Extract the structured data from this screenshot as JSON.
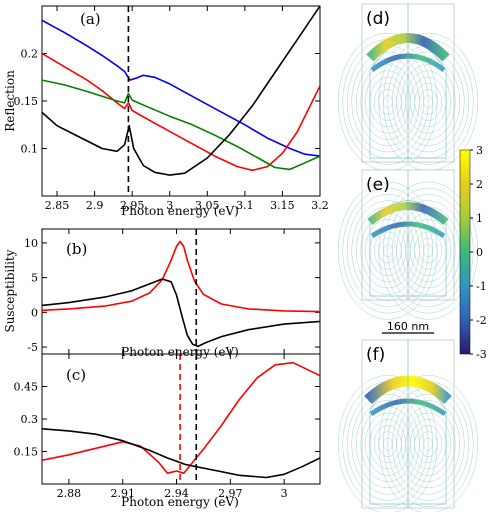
{
  "figure": {
    "colorbar": {
      "ticks": [
        "3",
        "2",
        "1",
        "0",
        "-1",
        "-2",
        "-3"
      ],
      "range": [
        -3,
        3
      ]
    },
    "scale_bar_label": "160 nm",
    "map_panels": [
      {
        "label": "(d)"
      },
      {
        "label": "(e)"
      },
      {
        "label": "(f)"
      }
    ]
  },
  "chart_data": [
    {
      "type": "line",
      "panel_label": "(a)",
      "xlabel": "Photon energy (eV)",
      "ylabel": "Reflection",
      "xlim": [
        2.83,
        3.2
      ],
      "ylim": [
        0.05,
        0.25
      ],
      "xticks": [
        "2.85",
        "2.9",
        "2.95",
        "3",
        "3.05",
        "3.1",
        "3.15",
        "3.2"
      ],
      "yticks": [
        "0.1",
        "0.15",
        "0.2"
      ],
      "vline": {
        "x": 2.945,
        "style": "dashed",
        "color": "#000000"
      },
      "series": [
        {
          "color": "#0000ff",
          "x": [
            2.83,
            2.86,
            2.89,
            2.91,
            2.93,
            2.94,
            2.947,
            2.955,
            2.965,
            2.98,
            3.0,
            3.03,
            3.06,
            3.1,
            3.13,
            3.16,
            3.18,
            3.2
          ],
          "y": [
            0.235,
            0.222,
            0.208,
            0.198,
            0.187,
            0.181,
            0.172,
            0.174,
            0.177,
            0.175,
            0.168,
            0.155,
            0.142,
            0.125,
            0.111,
            0.1,
            0.094,
            0.092
          ]
        },
        {
          "color": "#ff0000",
          "x": [
            2.83,
            2.86,
            2.89,
            2.91,
            2.93,
            2.94,
            2.945,
            2.95,
            2.97,
            3.0,
            3.03,
            3.06,
            3.09,
            3.11,
            3.13,
            3.15,
            3.17,
            3.2
          ],
          "y": [
            0.2,
            0.186,
            0.172,
            0.161,
            0.148,
            0.142,
            0.148,
            0.14,
            0.131,
            0.118,
            0.105,
            0.092,
            0.081,
            0.077,
            0.081,
            0.095,
            0.118,
            0.166
          ]
        },
        {
          "color": "#008000",
          "x": [
            2.83,
            2.86,
            2.89,
            2.91,
            2.93,
            2.94,
            2.945,
            2.95,
            2.97,
            3.0,
            3.03,
            3.06,
            3.09,
            3.12,
            3.14,
            3.16,
            3.18,
            3.2
          ],
          "y": [
            0.172,
            0.167,
            0.16,
            0.155,
            0.15,
            0.148,
            0.158,
            0.151,
            0.144,
            0.134,
            0.125,
            0.114,
            0.102,
            0.089,
            0.08,
            0.078,
            0.085,
            0.092
          ]
        },
        {
          "color": "#000000",
          "x": [
            2.83,
            2.85,
            2.88,
            2.91,
            2.93,
            2.94,
            2.946,
            2.952,
            2.965,
            2.98,
            3.0,
            3.02,
            3.05,
            3.08,
            3.11,
            3.14,
            3.17,
            3.2
          ],
          "y": [
            0.138,
            0.124,
            0.112,
            0.1,
            0.097,
            0.104,
            0.124,
            0.1,
            0.082,
            0.075,
            0.072,
            0.074,
            0.09,
            0.115,
            0.145,
            0.18,
            0.215,
            0.25
          ]
        }
      ]
    },
    {
      "type": "line",
      "panel_label": "(b)",
      "xlabel": "Photon energy (eV)",
      "ylabel": "Susceptibility",
      "xlim": [
        2.865,
        3.02
      ],
      "ylim": [
        -6,
        12
      ],
      "yticks": [
        "10",
        "5",
        "0",
        "-5"
      ],
      "vline": {
        "x": 2.951,
        "style": "dashed",
        "color": "#000000"
      },
      "series": [
        {
          "color": "#ff0000",
          "x": [
            2.865,
            2.88,
            2.9,
            2.915,
            2.925,
            2.932,
            2.937,
            2.94,
            2.942,
            2.944,
            2.946,
            2.95,
            2.955,
            2.965,
            2.98,
            3.0,
            3.02
          ],
          "y": [
            0.3,
            0.5,
            0.9,
            1.6,
            2.8,
            4.7,
            7.5,
            9.5,
            10.2,
            9.5,
            7.5,
            4.5,
            2.6,
            1.2,
            0.5,
            0.2,
            0.1
          ]
        },
        {
          "color": "#000000",
          "x": [
            2.865,
            2.88,
            2.9,
            2.915,
            2.925,
            2.932,
            2.937,
            2.94,
            2.943,
            2.946,
            2.949,
            2.952,
            2.956,
            2.965,
            2.98,
            3.0,
            3.02
          ],
          "y": [
            1.0,
            1.4,
            2.2,
            3.1,
            4.1,
            4.8,
            4.4,
            2.5,
            -0.5,
            -3.3,
            -4.6,
            -4.9,
            -4.4,
            -3.5,
            -2.5,
            -1.7,
            -1.3
          ]
        }
      ]
    },
    {
      "type": "line",
      "panel_label": "(c)",
      "xlabel": "Photon energy (eV)",
      "xlim": [
        2.865,
        3.02
      ],
      "ylim": [
        0.0,
        0.6
      ],
      "xticks": [
        "2.88",
        "2.91",
        "2.94",
        "2.97",
        "3"
      ],
      "yticks": [
        "0.45",
        "0.3",
        "0.15"
      ],
      "vlines": [
        {
          "x": 2.942,
          "style": "dashed",
          "color": "#ff0000"
        },
        {
          "x": 2.951,
          "style": "dashed",
          "color": "#000000"
        }
      ],
      "series": [
        {
          "color": "#ff0000",
          "x": [
            2.865,
            2.88,
            2.895,
            2.91,
            2.92,
            2.93,
            2.935,
            2.94,
            2.944,
            2.948,
            2.955,
            2.965,
            2.975,
            2.985,
            2.995,
            3.005,
            3.015,
            3.02
          ],
          "y": [
            0.11,
            0.135,
            0.165,
            0.195,
            0.175,
            0.1,
            0.05,
            0.06,
            0.05,
            0.09,
            0.16,
            0.27,
            0.39,
            0.49,
            0.55,
            0.56,
            0.52,
            0.5
          ]
        },
        {
          "color": "#000000",
          "x": [
            2.865,
            2.88,
            2.895,
            2.91,
            2.925,
            2.935,
            2.945,
            2.951,
            2.96,
            2.975,
            2.99,
            3.0,
            3.01,
            3.02
          ],
          "y": [
            0.255,
            0.245,
            0.23,
            0.2,
            0.155,
            0.12,
            0.09,
            0.08,
            0.065,
            0.04,
            0.03,
            0.045,
            0.08,
            0.12
          ]
        }
      ]
    }
  ]
}
